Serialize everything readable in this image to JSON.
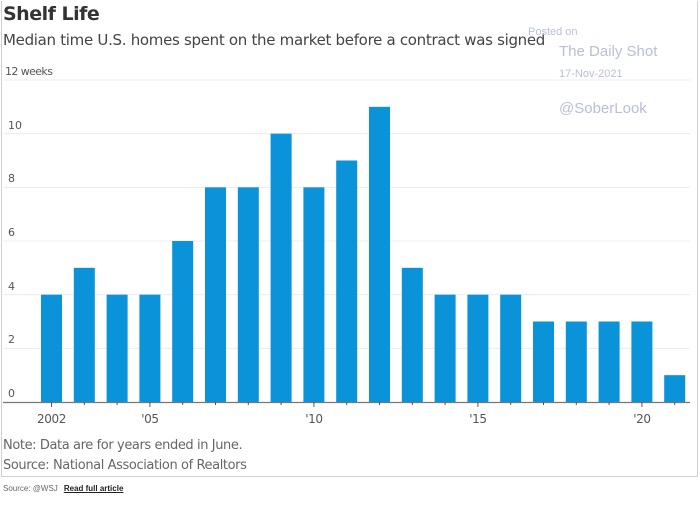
{
  "chart_data": {
    "type": "bar",
    "title": "Shelf Life",
    "subtitle": "Median time U.S. homes spent on the market before a contract was signed",
    "xlabel": "",
    "ylabel": "weeks",
    "ylim": [
      0,
      12
    ],
    "yticks": [
      0,
      2,
      4,
      6,
      8,
      10,
      12
    ],
    "ytick_labels": [
      "0",
      "2",
      "4",
      "6",
      "8",
      "10",
      "12 weeks"
    ],
    "grid": true,
    "categories": [
      "2002",
      "2003",
      "2004",
      "2005",
      "2006",
      "2007",
      "2008",
      "2009",
      "2010",
      "2011",
      "2012",
      "2013",
      "2014",
      "2015",
      "2016",
      "2017",
      "2018",
      "2019",
      "2020",
      "2021"
    ],
    "values": [
      4,
      5,
      4,
      4,
      6,
      8,
      8,
      10,
      8,
      9,
      11,
      5,
      4,
      4,
      4,
      3,
      3,
      3,
      3,
      1
    ],
    "xtick_labels": [
      {
        "category": "2002",
        "label": "2002"
      },
      {
        "category": "2005",
        "label": "'05"
      },
      {
        "category": "2010",
        "label": "'10"
      },
      {
        "category": "2015",
        "label": "'15"
      },
      {
        "category": "2020",
        "label": "'20"
      }
    ],
    "bar_color": "#0a93d8",
    "notes": [
      "Note: Data are for years ended in June.",
      "Source: National Association of Realtors"
    ]
  },
  "watermark": {
    "posted_on": "Posted on",
    "publisher": "The Daily Shot",
    "date": "17-Nov-2021",
    "handle": "@SoberLook"
  },
  "footer": {
    "source": "Source: @WSJ",
    "link": "Read full article"
  }
}
